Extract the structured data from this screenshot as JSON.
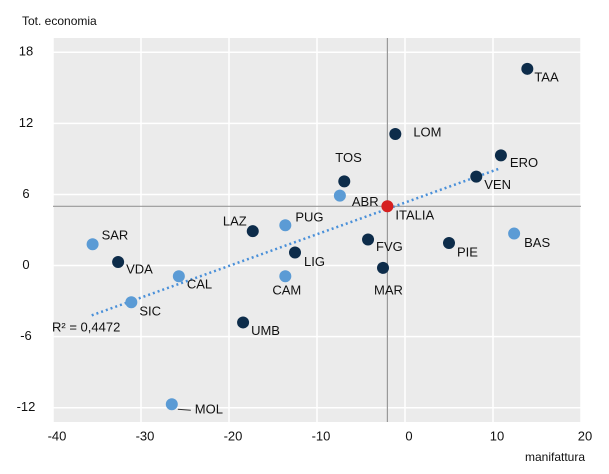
{
  "chart_data": {
    "type": "scatter",
    "y_label": "Tot. economia",
    "x_label": "manifattura",
    "xlim": [
      -40,
      20
    ],
    "ylim": [
      -13.2,
      19.2
    ],
    "xticks": [
      -40,
      -30,
      -20,
      -10,
      0,
      10,
      20
    ],
    "yticks": [
      -12,
      -6,
      0,
      6,
      12,
      18
    ],
    "grid": true,
    "reference": {
      "x": -2,
      "y": 5
    },
    "points": [
      {
        "label": "TAA",
        "x": 13.9,
        "y": 16.6,
        "color": "#0d2c4a"
      },
      {
        "label": "LOM",
        "x": -1.1,
        "y": 11.1,
        "color": "#0d2c4a"
      },
      {
        "label": "ERO",
        "x": 10.9,
        "y": 9.3,
        "color": "#0d2c4a"
      },
      {
        "label": "VEN",
        "x": 8.1,
        "y": 7.5,
        "color": "#0d2c4a"
      },
      {
        "label": "TOS",
        "x": -6.9,
        "y": 7.1,
        "color": "#0d2c4a"
      },
      {
        "label": "ABR",
        "x": -7.4,
        "y": 5.9,
        "color": "#5b9bd5"
      },
      {
        "label": "ITALIA",
        "x": -2,
        "y": 5,
        "color": "#d62020"
      },
      {
        "label": "LAZ",
        "x": -17.3,
        "y": 2.9,
        "color": "#0d2c4a"
      },
      {
        "label": "PUG",
        "x": -13.6,
        "y": 3.4,
        "color": "#5b9bd5"
      },
      {
        "label": "SAR",
        "x": -35.5,
        "y": 1.8,
        "color": "#5b9bd5"
      },
      {
        "label": "BAS",
        "x": 12.4,
        "y": 2.7,
        "color": "#5b9bd5"
      },
      {
        "label": "PIE",
        "x": 5.0,
        "y": 1.9,
        "color": "#0d2c4a"
      },
      {
        "label": "FVG",
        "x": -4.2,
        "y": 2.2,
        "color": "#0d2c4a"
      },
      {
        "label": "VDA",
        "x": -32.6,
        "y": 0.3,
        "color": "#0d2c4a"
      },
      {
        "label": "LIG",
        "x": -12.5,
        "y": 1.1,
        "color": "#0d2c4a"
      },
      {
        "label": "CAL",
        "x": -25.7,
        "y": -0.9,
        "color": "#5b9bd5"
      },
      {
        "label": "CAM",
        "x": -13.6,
        "y": -0.9,
        "color": "#5b9bd5"
      },
      {
        "label": "MAR",
        "x": -2.5,
        "y": -0.2,
        "color": "#0d2c4a"
      },
      {
        "label": "SIC",
        "x": -31.1,
        "y": -3.1,
        "color": "#5b9bd5"
      },
      {
        "label": "UMB",
        "x": -18.4,
        "y": -4.8,
        "color": "#0d2c4a"
      },
      {
        "label": "MOL",
        "x": -26.5,
        "y": -11.7,
        "color": "#5b9bd5"
      }
    ],
    "trendline": {
      "x": [
        -35.6,
        10.8
      ],
      "y": [
        -4.2,
        8.2
      ],
      "color": "#4a90d9",
      "annotation": "R² = 0,4472"
    }
  }
}
